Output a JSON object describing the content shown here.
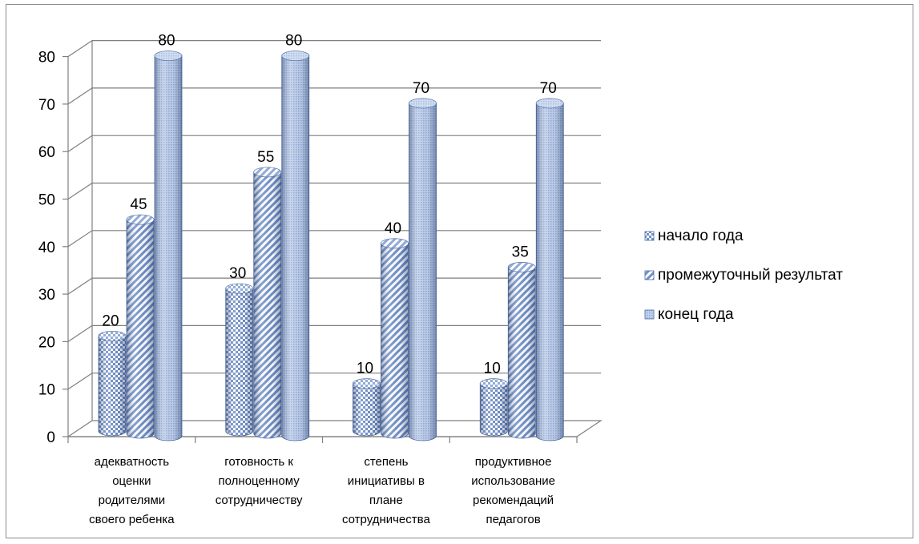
{
  "chart_data": {
    "type": "bar",
    "style": "3d-cylinder",
    "categories": [
      [
        "адекватность",
        "оценки",
        "родителями",
        "своего ребенка"
      ],
      [
        "готовность к",
        "полноценному",
        "сотрудничеству"
      ],
      [
        "степень",
        "инициативы в",
        "плане",
        "сотрудничества"
      ],
      [
        "продуктивное",
        "использование",
        "рекомендаций",
        "педагогов"
      ]
    ],
    "series": [
      {
        "name": "начало года",
        "values": [
          20,
          30,
          10,
          10
        ],
        "pattern": "checker"
      },
      {
        "name": "промежуточный  результат",
        "values": [
          45,
          55,
          40,
          35
        ],
        "pattern": "diagonal"
      },
      {
        "name": "конец года",
        "values": [
          80,
          80,
          70,
          70
        ],
        "pattern": "fine"
      }
    ],
    "ylim": [
      0,
      80
    ],
    "yticks": [
      0,
      10,
      20,
      30,
      40,
      50,
      60,
      70,
      80
    ],
    "grid": true,
    "legend": "right",
    "data_labels": true,
    "colors": {
      "fill": "#6f8fc8",
      "light": "#dfe8f6",
      "dark": "#2f4f8f",
      "grid": "#7f7f7f"
    }
  }
}
